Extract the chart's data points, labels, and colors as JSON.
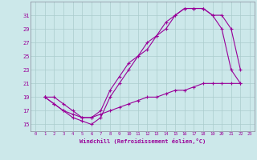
{
  "xlabel": "Windchill (Refroidissement éolien,°C)",
  "bg_color": "#cce8ea",
  "grid_color": "#aacccc",
  "line_color": "#990099",
  "xlim": [
    -0.5,
    23.5
  ],
  "ylim": [
    14.0,
    33.0
  ],
  "yticks": [
    15,
    17,
    19,
    21,
    23,
    25,
    27,
    29,
    31
  ],
  "xticks": [
    0,
    1,
    2,
    3,
    4,
    5,
    6,
    7,
    8,
    9,
    10,
    11,
    12,
    13,
    14,
    15,
    16,
    17,
    18,
    19,
    20,
    21,
    22,
    23
  ],
  "line1_x": [
    1,
    2,
    3,
    4,
    5,
    6,
    7,
    8,
    9,
    10,
    11,
    12,
    13,
    14,
    15,
    16,
    17,
    18,
    19,
    20,
    21,
    22
  ],
  "line1_y": [
    19,
    19,
    18,
    17,
    16,
    16,
    17,
    20,
    22,
    24,
    25,
    27,
    28,
    30,
    31,
    32,
    32,
    32,
    31,
    31,
    29,
    23
  ],
  "line2_x": [
    1,
    2,
    3,
    4,
    5,
    6,
    7,
    8,
    9,
    10,
    11,
    12,
    13,
    14,
    15,
    16,
    17,
    18,
    19,
    20,
    21,
    22
  ],
  "line2_y": [
    19,
    18,
    17,
    16,
    15.5,
    15,
    16,
    19,
    21,
    23,
    25,
    26,
    28,
    29,
    31,
    32,
    32,
    32,
    31,
    29,
    23,
    21
  ],
  "line3_x": [
    1,
    2,
    3,
    4,
    5,
    6,
    7,
    8,
    9,
    10,
    11,
    12,
    13,
    14,
    15,
    16,
    17,
    18,
    19,
    20,
    21,
    22
  ],
  "line3_y": [
    19,
    18,
    17,
    16.5,
    16,
    16,
    16.5,
    17,
    17.5,
    18,
    18.5,
    19,
    19,
    19.5,
    20,
    20,
    20.5,
    21,
    21,
    21,
    21,
    21
  ]
}
